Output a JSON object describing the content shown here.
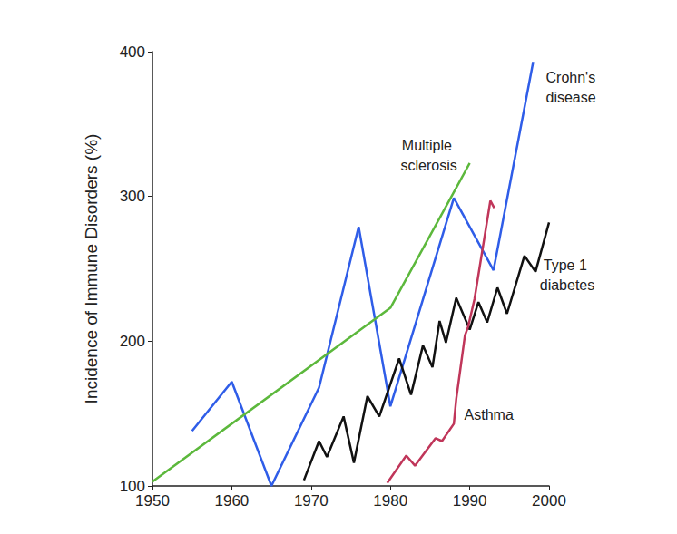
{
  "chart_data": {
    "type": "line",
    "ylabel": "Incidence of Immune Disorders (%)",
    "xlim": [
      1950,
      2000
    ],
    "xticks": [
      1950,
      1960,
      1970,
      1980,
      1990,
      2000
    ],
    "ylim": [
      100,
      400
    ],
    "yticks": [
      100,
      200,
      300,
      400
    ],
    "grid": false,
    "series": [
      {
        "name": "Crohn's disease",
        "color": "#2f5de8",
        "x": [
          1955,
          1960,
          1965,
          1971,
          1976,
          1980,
          1988,
          1993,
          1998
        ],
        "values": [
          138,
          172,
          100,
          168,
          279,
          155,
          299,
          249,
          393
        ]
      },
      {
        "name": "Multiple sclerosis",
        "color": "#5cb83c",
        "x": [
          1950,
          1980,
          1990
        ],
        "values": [
          103,
          223,
          323
        ]
      },
      {
        "name": "Type 1 diabetes",
        "color": "#111111",
        "x": [
          1969.1,
          1971,
          1972,
          1974.1,
          1975.4,
          1977.1,
          1978.6,
          1981.1,
          1982.6,
          1984.1,
          1985.3,
          1986.2,
          1987,
          1988.3,
          1990,
          1991.1,
          1992.2,
          1993.5,
          1994.7,
          1996.9,
          1998.3,
          2000
        ],
        "values": [
          104,
          131,
          120,
          148,
          116,
          162,
          148,
          188,
          163,
          197,
          182,
          214,
          199,
          230,
          208,
          227,
          213,
          237,
          219,
          259,
          248,
          282
        ]
      },
      {
        "name": "Asthma",
        "color": "#c0365a",
        "x": [
          1979.6,
          1982,
          1983.1,
          1985.7,
          1986.5,
          1988,
          1988.3,
          1989.4,
          1989.8,
          1990.6,
          1992.6,
          1993.1
        ],
        "values": [
          102,
          121,
          114,
          133,
          131,
          143,
          160,
          204,
          210,
          229,
          297,
          292
        ]
      }
    ]
  }
}
